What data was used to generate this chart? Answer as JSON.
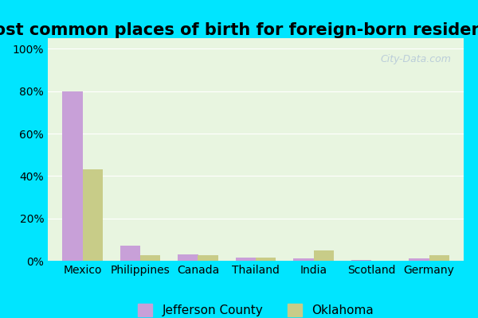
{
  "title": "Most common places of birth for foreign-born residents",
  "categories": [
    "Mexico",
    "Philippines",
    "Canada",
    "Thailand",
    "India",
    "Scotland",
    "Germany"
  ],
  "jefferson_county": [
    80,
    7,
    3,
    1.5,
    1,
    0.5,
    1
  ],
  "oklahoma": [
    43,
    2.5,
    2.5,
    1.5,
    5,
    0,
    2.5
  ],
  "jefferson_color": "#c8a0d8",
  "oklahoma_color": "#c8cc88",
  "background_outer": "#00e5ff",
  "background_inner": "#e8f5e0",
  "title_fontsize": 15,
  "axis_label_fontsize": 10,
  "legend_fontsize": 11,
  "yticks": [
    0,
    20,
    40,
    60,
    80,
    100
  ],
  "ytick_labels": [
    "0%",
    "20%",
    "40%",
    "60%",
    "80%",
    "100%"
  ],
  "ylim": [
    0,
    105
  ]
}
